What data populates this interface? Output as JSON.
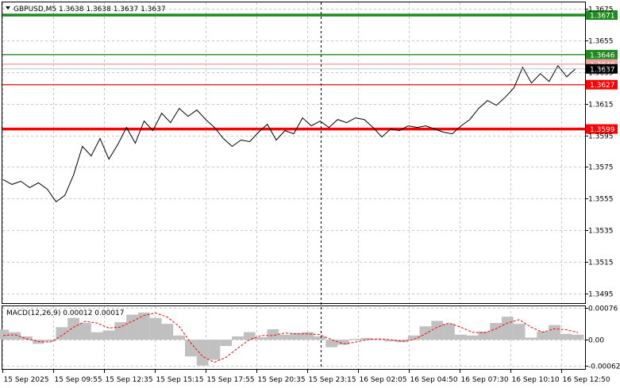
{
  "chart_data": {
    "type": "line",
    "symbol_line": "GBPUSD,M5  1.3638 1.3638 1.3637 1.3637",
    "price_axis": {
      "ticks": [
        "1.3675",
        "1.3655",
        "1.3635",
        "1.3615",
        "1.3595",
        "1.3575",
        "1.3555",
        "1.3535",
        "1.3515",
        "1.3495"
      ],
      "range": [
        1.3489,
        1.3679
      ]
    },
    "time_axis": {
      "ticks": [
        "15 Sep 2025",
        "15 Sep 09:55",
        "15 Sep 12:35",
        "15 Sep 15:15",
        "15 Sep 17:55",
        "15 Sep 20:35",
        "15 Sep 23:15",
        "16 Sep 02:05",
        "16 Sep 04:50",
        "16 Sep 07:30",
        "16 Sep 10:10",
        "16 Sep 12:50"
      ]
    },
    "levels": [
      {
        "value": 1.3671,
        "label": "1.3671",
        "color": "#1f8a1f",
        "style": "thick"
      },
      {
        "value": 1.3646,
        "label": "1.3646",
        "color": "#1f8a1f",
        "style": "thin"
      },
      {
        "value": 1.364,
        "label": "1.3640",
        "color": "#f2a0a0",
        "style": "thin"
      },
      {
        "value": 1.3627,
        "label": "1.3627",
        "color": "#ff0000",
        "style": "thin"
      },
      {
        "value": 1.3599,
        "label": "1.3599",
        "color": "#ff0000",
        "style": "thick"
      }
    ],
    "current_price": {
      "value": 1.3637,
      "label": "1.3637"
    },
    "price_series": [
      1.3567,
      1.3564,
      1.3566,
      1.3562,
      1.3565,
      1.3561,
      1.3553,
      1.3557,
      1.357,
      1.3588,
      1.3582,
      1.3593,
      1.358,
      1.3589,
      1.36,
      1.359,
      1.3604,
      1.3598,
      1.3609,
      1.3603,
      1.3612,
      1.3607,
      1.3611,
      1.3605,
      1.36,
      1.3593,
      1.3588,
      1.3592,
      1.3591,
      1.3597,
      1.3602,
      1.3592,
      1.3598,
      1.3596,
      1.3606,
      1.3601,
      1.3604,
      1.36,
      1.3605,
      1.3603,
      1.3606,
      1.3605,
      1.36,
      1.3594,
      1.3599,
      1.3598,
      1.3601,
      1.36,
      1.3601,
      1.3599,
      1.3597,
      1.3596,
      1.3601,
      1.3605,
      1.3612,
      1.3617,
      1.3614,
      1.3619,
      1.3625,
      1.3638,
      1.3628,
      1.3634,
      1.3629,
      1.3639,
      1.3632,
      1.3637
    ],
    "indicator": {
      "label": "MACD(12,26,9) 0.00012 0.00017",
      "ticks": [
        "0.00076",
        "0.00",
        "-0.00062"
      ],
      "range": [
        -0.0007,
        0.0008
      ],
      "histogram": [
        0.00024,
        0.00018,
        8e-05,
        -0.0001,
        -4e-05,
        0.0003,
        0.00052,
        0.0004,
        0.00018,
        0.00022,
        0.00042,
        0.0006,
        0.00065,
        0.00052,
        0.00038,
        0.0001,
        -0.0004,
        -0.00062,
        -0.00048,
        -0.00015,
        8e-05,
        0.00018,
        6e-05,
        0.00025,
        0.00012,
        0.00016,
        0.00018,
        8e-05,
        -0.00018,
        -0.00012,
        2e-05,
        4e-05,
        2e-05,
        -4e-05,
        -6e-05,
        0.0001,
        0.00032,
        0.00045,
        0.00038,
        0.00012,
        0.0001,
        0.0002,
        0.0004,
        0.00055,
        0.00038,
        5e-05,
        0.0002,
        0.00035,
        0.00014,
        0.00012
      ],
      "signal": [
        0.0001,
        0.00012,
        2e-05,
        -4e-05,
        -6e-05,
        0.0001,
        0.0003,
        0.00044,
        0.0004,
        0.00028,
        0.0003,
        0.00044,
        0.00058,
        0.00064,
        0.00054,
        0.00032,
        -8e-05,
        -0.0004,
        -0.00054,
        -0.00042,
        -0.0002,
        0.0,
        0.0001,
        0.0001,
        0.00016,
        0.00014,
        0.00014,
        0.00012,
        0.0,
        -0.0001,
        -6e-05,
        0.0,
        2e-05,
        0.0,
        -4e-05,
        0.0,
        0.00014,
        0.0003,
        0.0004,
        0.0003,
        0.00018,
        0.00016,
        0.00026,
        0.0004,
        0.00048,
        0.0003,
        0.00018,
        0.00026,
        0.00024,
        0.00017
      ],
      "histogram_color": "#c0c0c0",
      "signal_color": "#ff0000"
    }
  }
}
